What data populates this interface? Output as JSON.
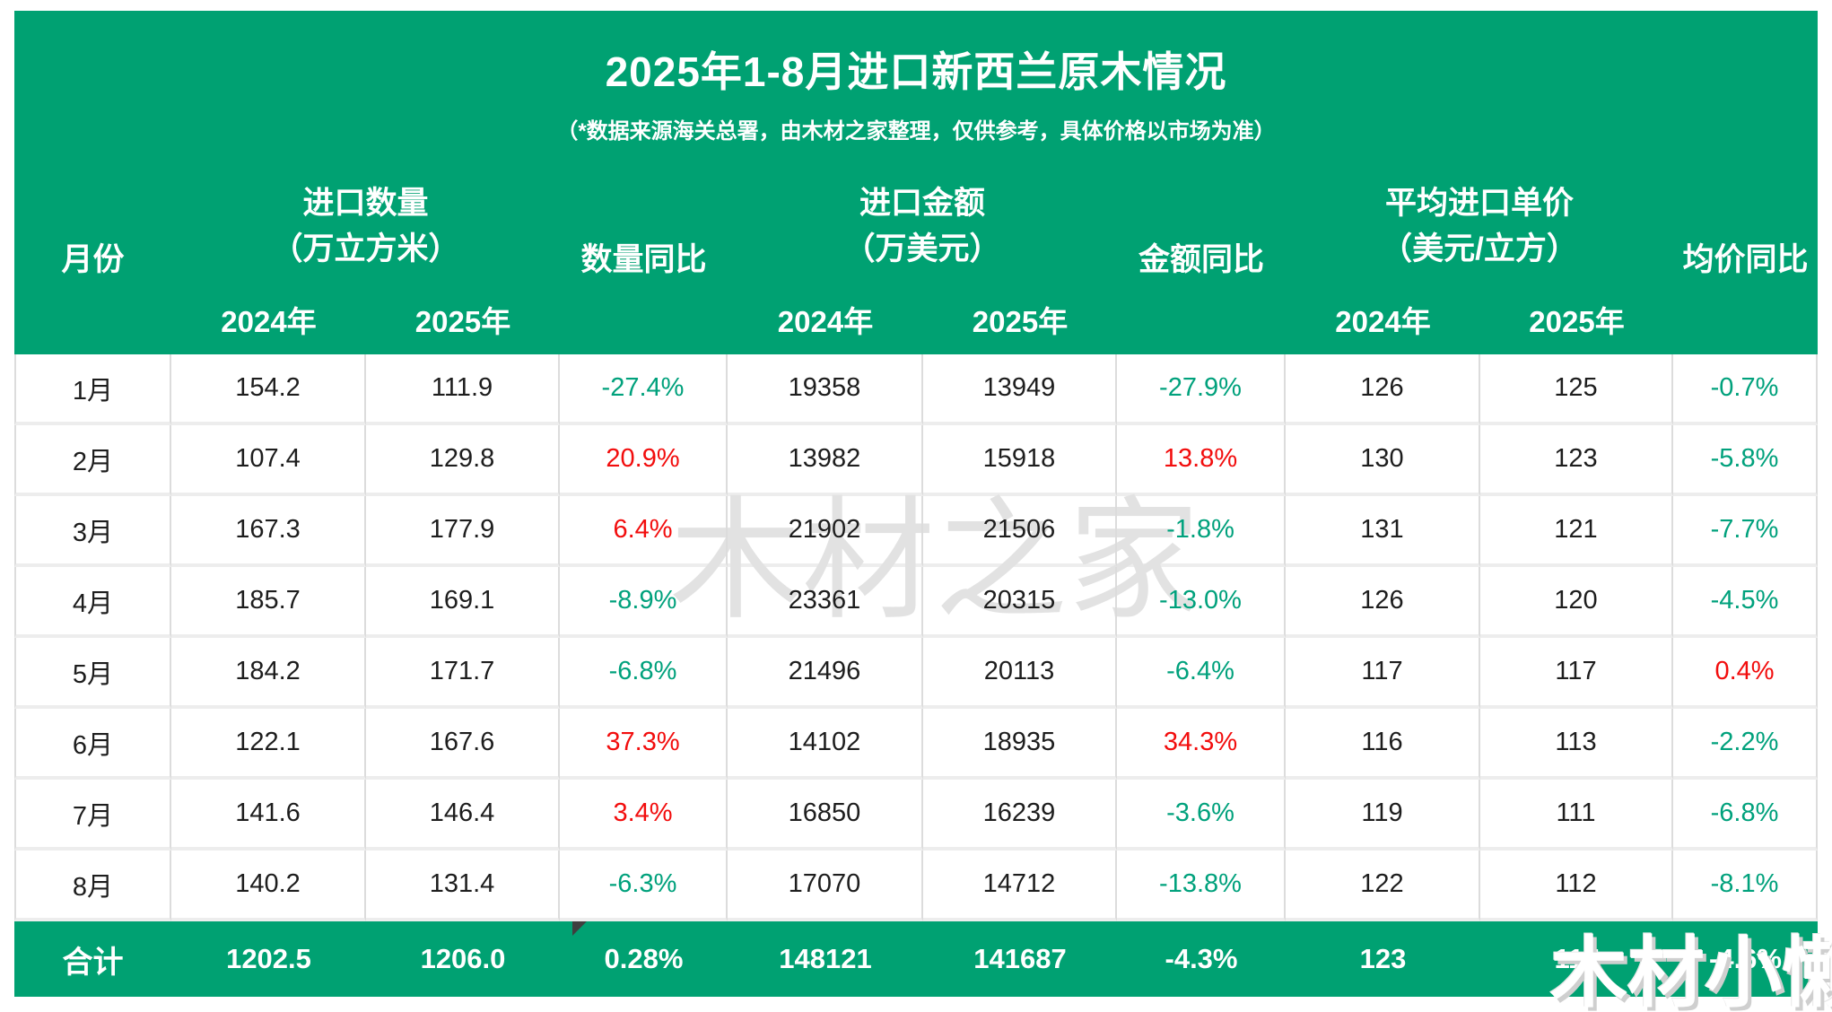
{
  "title": "2025年1-8月进口新西兰原木情况",
  "subtitle": "（*数据来源海关总署，由木材之家整理，仅供参考，具体价格以市场为准）",
  "colors": {
    "header_green": "#00A172",
    "yoy_negative_green": "#00A17C",
    "yoy_positive_red": "#F20D0D",
    "body_text": "#1D1D1D",
    "gridline": "#DCDCDC",
    "watermark_gray": "#E2E2E2"
  },
  "watermarks": {
    "center": "木材之家",
    "corner": "木材小懒"
  },
  "table": {
    "headers": {
      "month": "月份",
      "qty_group": "进口数量",
      "qty_unit": "（万立方米）",
      "qty_yoy": "数量同比",
      "amt_group": "进口金额",
      "amt_unit": "（万美元）",
      "amt_yoy": "金额同比",
      "price_group": "平均进口单价",
      "price_unit": "（美元/立方）",
      "price_yoy": "均价同比",
      "y2024": "2024年",
      "y2025": "2025年"
    },
    "rows": [
      {
        "month": "1月",
        "qty_2024": "154.2",
        "qty_2025": "111.9",
        "qty_yoy": "-27.4%",
        "qty_yoy_color": "green",
        "amt_2024": "19358",
        "amt_2025": "13949",
        "amt_yoy": "-27.9%",
        "amt_yoy_color": "green",
        "price_2024": "126",
        "price_2025": "125",
        "price_yoy": "-0.7%",
        "price_yoy_color": "green"
      },
      {
        "month": "2月",
        "qty_2024": "107.4",
        "qty_2025": "129.8",
        "qty_yoy": "20.9%",
        "qty_yoy_color": "red",
        "amt_2024": "13982",
        "amt_2025": "15918",
        "amt_yoy": "13.8%",
        "amt_yoy_color": "red",
        "price_2024": "130",
        "price_2025": "123",
        "price_yoy": "-5.8%",
        "price_yoy_color": "green"
      },
      {
        "month": "3月",
        "qty_2024": "167.3",
        "qty_2025": "177.9",
        "qty_yoy": "6.4%",
        "qty_yoy_color": "red",
        "amt_2024": "21902",
        "amt_2025": "21506",
        "amt_yoy": "-1.8%",
        "amt_yoy_color": "green",
        "price_2024": "131",
        "price_2025": "121",
        "price_yoy": "-7.7%",
        "price_yoy_color": "green"
      },
      {
        "month": "4月",
        "qty_2024": "185.7",
        "qty_2025": "169.1",
        "qty_yoy": "-8.9%",
        "qty_yoy_color": "green",
        "amt_2024": "23361",
        "amt_2025": "20315",
        "amt_yoy": "-13.0%",
        "amt_yoy_color": "green",
        "price_2024": "126",
        "price_2025": "120",
        "price_yoy": "-4.5%",
        "price_yoy_color": "green"
      },
      {
        "month": "5月",
        "qty_2024": "184.2",
        "qty_2025": "171.7",
        "qty_yoy": "-6.8%",
        "qty_yoy_color": "green",
        "amt_2024": "21496",
        "amt_2025": "20113",
        "amt_yoy": "-6.4%",
        "amt_yoy_color": "green",
        "price_2024": "117",
        "price_2025": "117",
        "price_yoy": "0.4%",
        "price_yoy_color": "red"
      },
      {
        "month": "6月",
        "qty_2024": "122.1",
        "qty_2025": "167.6",
        "qty_yoy": "37.3%",
        "qty_yoy_color": "red",
        "amt_2024": "14102",
        "amt_2025": "18935",
        "amt_yoy": "34.3%",
        "amt_yoy_color": "red",
        "price_2024": "116",
        "price_2025": "113",
        "price_yoy": "-2.2%",
        "price_yoy_color": "green"
      },
      {
        "month": "7月",
        "qty_2024": "141.6",
        "qty_2025": "146.4",
        "qty_yoy": "3.4%",
        "qty_yoy_color": "red",
        "amt_2024": "16850",
        "amt_2025": "16239",
        "amt_yoy": "-3.6%",
        "amt_yoy_color": "green",
        "price_2024": "119",
        "price_2025": "111",
        "price_yoy": "-6.8%",
        "price_yoy_color": "green"
      },
      {
        "month": "8月",
        "qty_2024": "140.2",
        "qty_2025": "131.4",
        "qty_yoy": "-6.3%",
        "qty_yoy_color": "green",
        "amt_2024": "17070",
        "amt_2025": "14712",
        "amt_yoy": "-13.8%",
        "amt_yoy_color": "green",
        "price_2024": "122",
        "price_2025": "112",
        "price_yoy": "-8.1%",
        "price_yoy_color": "green"
      }
    ],
    "total": {
      "month": "合计",
      "qty_2024": "1202.5",
      "qty_2025": "1206.0",
      "qty_yoy": "0.28%",
      "amt_2024": "148121",
      "amt_2025": "141687",
      "amt_yoy": "-4.3%",
      "price_2024": "123",
      "price_2025": "117",
      "price_yoy": "-4.6%"
    }
  },
  "chart_data": {
    "type": "table",
    "title": "2025年1-8月进口新西兰原木情况",
    "subtitle": "（*数据来源海关总署，由木材之家整理，仅供参考，具体价格以市场为准）",
    "columns": [
      "月份",
      "进口数量(万立方米) 2024年",
      "进口数量(万立方米) 2025年",
      "数量同比",
      "进口金额(万美元) 2024年",
      "进口金额(万美元) 2025年",
      "金额同比",
      "平均进口单价(美元/立方) 2024年",
      "平均进口单价(美元/立方) 2025年",
      "均价同比"
    ],
    "rows": [
      [
        "1月",
        154.2,
        111.9,
        "-27.4%",
        19358,
        13949,
        "-27.9%",
        126,
        125,
        "-0.7%"
      ],
      [
        "2月",
        107.4,
        129.8,
        "20.9%",
        13982,
        15918,
        "13.8%",
        130,
        123,
        "-5.8%"
      ],
      [
        "3月",
        167.3,
        177.9,
        "6.4%",
        21902,
        21506,
        "-1.8%",
        131,
        121,
        "-7.7%"
      ],
      [
        "4月",
        185.7,
        169.1,
        "-8.9%",
        23361,
        20315,
        "-13.0%",
        126,
        120,
        "-4.5%"
      ],
      [
        "5月",
        184.2,
        171.7,
        "-6.8%",
        21496,
        20113,
        "-6.4%",
        117,
        117,
        "0.4%"
      ],
      [
        "6月",
        122.1,
        167.6,
        "37.3%",
        14102,
        18935,
        "34.3%",
        116,
        113,
        "-2.2%"
      ],
      [
        "7月",
        141.6,
        146.4,
        "3.4%",
        16850,
        16239,
        "-3.6%",
        119,
        111,
        "-6.8%"
      ],
      [
        "8月",
        140.2,
        131.4,
        "-6.3%",
        17070,
        14712,
        "-13.8%",
        122,
        112,
        "-8.1%"
      ],
      [
        "合计",
        1202.5,
        1206.0,
        "0.28%",
        148121,
        141687,
        "-4.3%",
        123,
        117,
        "-4.6%"
      ]
    ],
    "notes": "同比单元格颜色：负值为绿色（teal），正值为红色；合计行为白字绿底"
  }
}
